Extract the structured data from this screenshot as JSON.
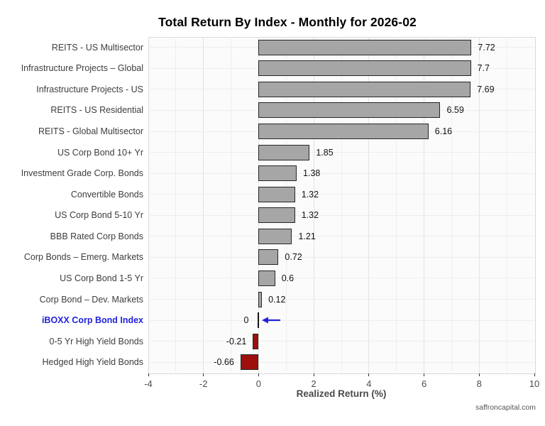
{
  "chart_data": {
    "type": "bar",
    "orientation": "horizontal",
    "title": "Total Return By Index - Monthly for 2026-02",
    "xlabel": "Realized Return (%)",
    "xlim": [
      -4,
      10
    ],
    "xticks": [
      "-4",
      "-2",
      "0",
      "2",
      "4",
      "6",
      "8",
      "10"
    ],
    "grid": true,
    "legend": false,
    "bars": [
      {
        "label": "REITS - US Multisector",
        "value": 7.72,
        "value_label": "7.72"
      },
      {
        "label": "Infrastructure Projects – Global",
        "value": 7.7,
        "value_label": "7.7"
      },
      {
        "label": "Infrastructure Projects - US",
        "value": 7.69,
        "value_label": "7.69"
      },
      {
        "label": "REITS - US Residential",
        "value": 6.59,
        "value_label": "6.59"
      },
      {
        "label": "REITS - Global Multisector",
        "value": 6.16,
        "value_label": "6.16"
      },
      {
        "label": "US Corp Bond 10+ Yr",
        "value": 1.85,
        "value_label": "1.85"
      },
      {
        "label": "Investment Grade Corp. Bonds",
        "value": 1.38,
        "value_label": "1.38"
      },
      {
        "label": "Convertible Bonds",
        "value": 1.32,
        "value_label": "1.32"
      },
      {
        "label": "US Corp Bond 5-10 Yr",
        "value": 1.32,
        "value_label": "1.32"
      },
      {
        "label": "BBB Rated Corp Bonds",
        "value": 1.21,
        "value_label": "1.21"
      },
      {
        "label": "Corp Bonds – Emerg. Markets",
        "value": 0.72,
        "value_label": "0.72"
      },
      {
        "label": "US Corp Bond 1-5 Yr",
        "value": 0.6,
        "value_label": "0.6"
      },
      {
        "label": "Corp Bond – Dev. Markets",
        "value": 0.12,
        "value_label": "0.12"
      },
      {
        "label": "iBOXX Corp Bond Index",
        "value": 0,
        "value_label": "0",
        "highlight": true,
        "annotation": "left-arrow"
      },
      {
        "label": "0-5 Yr High Yield Bonds",
        "value": -0.21,
        "value_label": "-0.21"
      },
      {
        "label": "Hedged High Yield Bonds",
        "value": -0.66,
        "value_label": "-0.66"
      }
    ],
    "colors": {
      "positive_fill": "#A6A6A6",
      "negative_fill": "#9D100C",
      "bar_border": "#262626",
      "zero_bar": "#161616",
      "highlight_text": "#2222DD",
      "arrow": "#2222DD",
      "label_text": "#3D3D3D",
      "value_text": "#111111",
      "tick_text": "#4D4D4D",
      "tick_mark": "#333333",
      "grid_major": "#E3E3E3",
      "grid_minor": "#EFEFEF",
      "grid_horizontal": "#EDEDED"
    }
  },
  "footer": {
    "watermark": "saffroncapital.com"
  }
}
